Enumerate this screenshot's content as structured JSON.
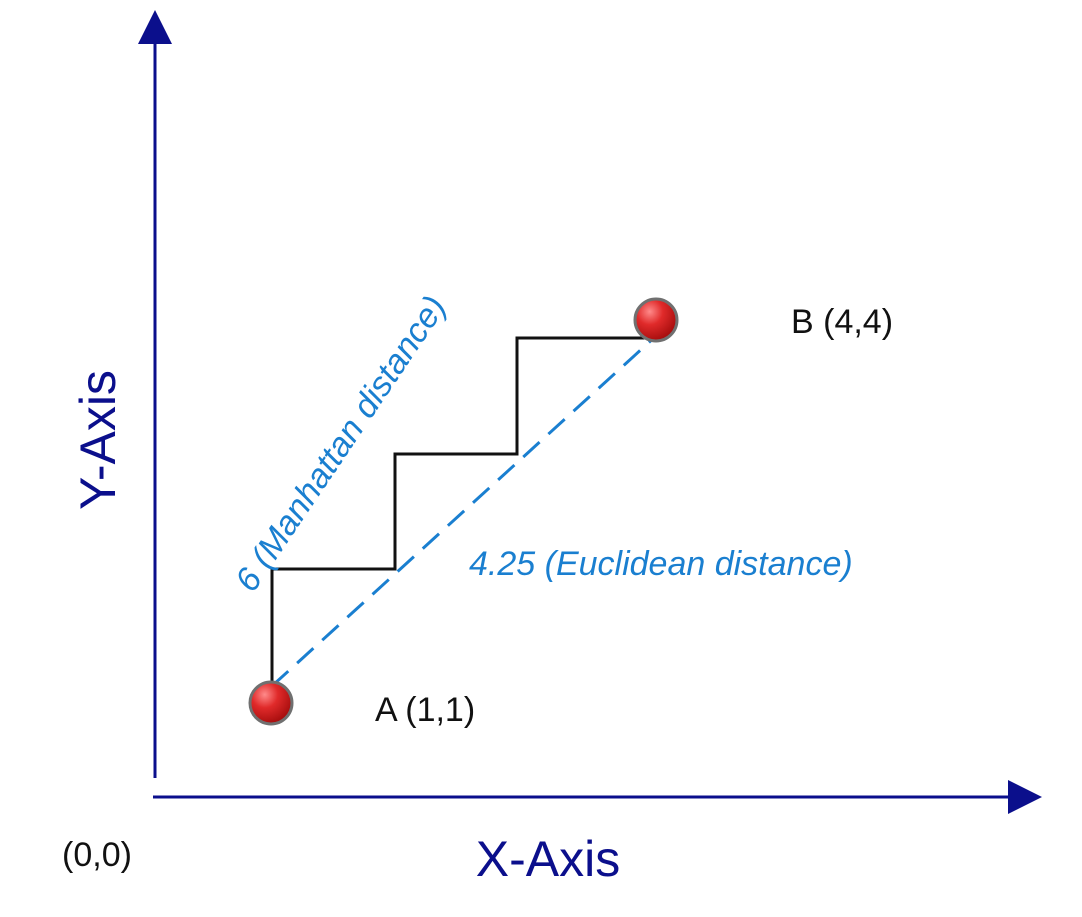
{
  "diagram": {
    "origin_label": "(0,0)",
    "x_axis_label": "X-Axis",
    "y_axis_label": "Y-Axis",
    "point_a_label": "A (1,1)",
    "point_b_label": "B (4,4)",
    "manhattan_label": "6 (Manhattan distance)",
    "euclidean_label": "4.25 (Euclidean distance)"
  },
  "colors": {
    "axis": "#0b0f8c",
    "note": "#1a7fd0",
    "path": "#111111",
    "point_fill": "#d32020",
    "point_stroke": "#707070"
  }
}
